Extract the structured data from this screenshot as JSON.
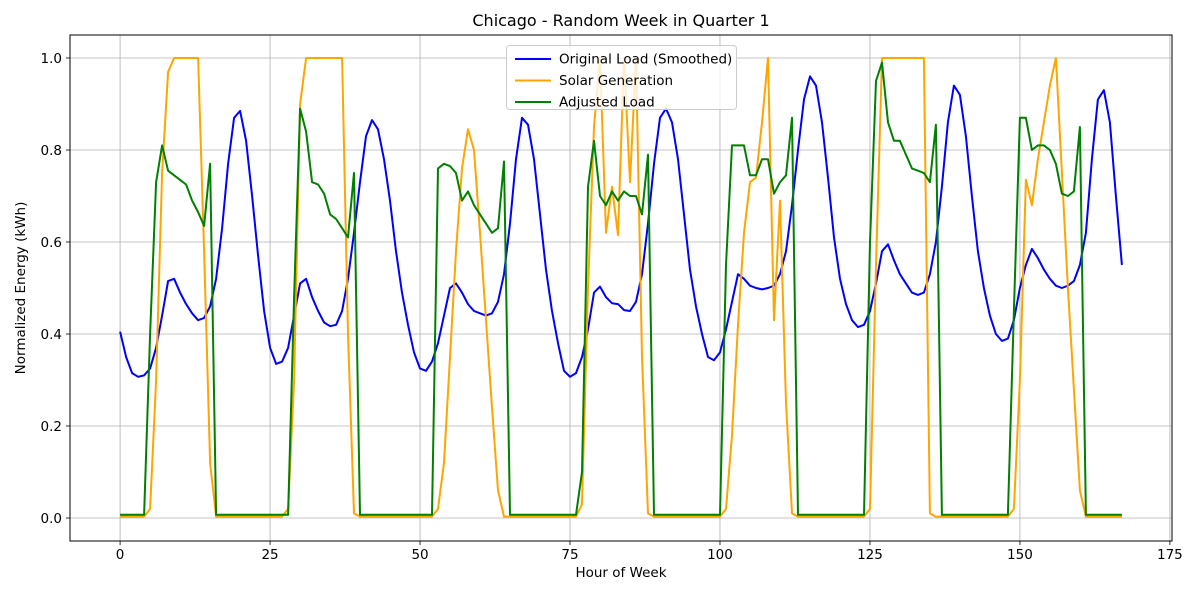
{
  "chart_data": {
    "type": "line",
    "title": "Chicago - Random Week in Quarter 1",
    "xlabel": "Hour of Week",
    "ylabel": "Normalized Energy (kWh)",
    "xlim": [
      -8.35,
      175.35
    ],
    "ylim": [
      -0.05,
      1.05
    ],
    "xticks": [
      0,
      25,
      50,
      75,
      100,
      125,
      150,
      175
    ],
    "yticks": [
      0.0,
      0.2,
      0.4,
      0.6,
      0.8,
      1.0
    ],
    "grid": true,
    "grid_color": "#b0b0b0",
    "background_color": "#ffffff",
    "legend_position": "upper center",
    "x_start": 0,
    "x_step": 1,
    "n_points": 168,
    "series": [
      {
        "name": "Original Load (Smoothed)",
        "color": "#0000ff",
        "values": [
          0.405,
          0.35,
          0.315,
          0.307,
          0.31,
          0.325,
          0.37,
          0.44,
          0.515,
          0.52,
          0.49,
          0.465,
          0.445,
          0.43,
          0.435,
          0.46,
          0.52,
          0.63,
          0.77,
          0.87,
          0.885,
          0.82,
          0.7,
          0.57,
          0.45,
          0.37,
          0.335,
          0.34,
          0.37,
          0.44,
          0.51,
          0.52,
          0.48,
          0.45,
          0.425,
          0.417,
          0.42,
          0.45,
          0.52,
          0.62,
          0.73,
          0.83,
          0.865,
          0.845,
          0.78,
          0.69,
          0.58,
          0.49,
          0.42,
          0.36,
          0.325,
          0.32,
          0.34,
          0.38,
          0.44,
          0.5,
          0.51,
          0.49,
          0.465,
          0.45,
          0.445,
          0.44,
          0.445,
          0.47,
          0.53,
          0.64,
          0.78,
          0.87,
          0.855,
          0.78,
          0.66,
          0.54,
          0.45,
          0.38,
          0.32,
          0.307,
          0.315,
          0.35,
          0.41,
          0.49,
          0.503,
          0.48,
          0.467,
          0.465,
          0.452,
          0.45,
          0.47,
          0.53,
          0.64,
          0.77,
          0.87,
          0.89,
          0.86,
          0.78,
          0.66,
          0.54,
          0.46,
          0.4,
          0.35,
          0.343,
          0.36,
          0.41,
          0.47,
          0.53,
          0.52,
          0.505,
          0.5,
          0.497,
          0.5,
          0.505,
          0.53,
          0.58,
          0.68,
          0.8,
          0.91,
          0.96,
          0.94,
          0.86,
          0.74,
          0.61,
          0.52,
          0.465,
          0.43,
          0.415,
          0.42,
          0.45,
          0.51,
          0.58,
          0.595,
          0.56,
          0.53,
          0.51,
          0.49,
          0.485,
          0.49,
          0.53,
          0.6,
          0.72,
          0.86,
          0.94,
          0.92,
          0.83,
          0.7,
          0.58,
          0.5,
          0.44,
          0.4,
          0.385,
          0.39,
          0.43,
          0.5,
          0.55,
          0.585,
          0.565,
          0.54,
          0.52,
          0.505,
          0.5,
          0.505,
          0.515,
          0.55,
          0.62,
          0.78,
          0.91,
          0.93,
          0.86,
          0.7,
          0.55
        ]
      },
      {
        "name": "Solar Generation",
        "color": "#ffa500",
        "values": [
          0.003,
          0.003,
          0.003,
          0.003,
          0.003,
          0.02,
          0.3,
          0.75,
          0.97,
          1,
          1,
          1,
          1,
          1,
          0.58,
          0.12,
          0.003,
          0.003,
          0.003,
          0.003,
          0.003,
          0.003,
          0.003,
          0.003,
          0.003,
          0.003,
          0.003,
          0.003,
          0.02,
          0.3,
          0.9,
          1,
          1,
          1,
          1,
          1,
          1,
          1,
          0.4,
          0.01,
          0.003,
          0.003,
          0.003,
          0.003,
          0.003,
          0.003,
          0.003,
          0.003,
          0.003,
          0.003,
          0.003,
          0.003,
          0.003,
          0.02,
          0.12,
          0.35,
          0.58,
          0.76,
          0.845,
          0.8,
          0.62,
          0.43,
          0.24,
          0.06,
          0.003,
          0.003,
          0.003,
          0.003,
          0.003,
          0.003,
          0.003,
          0.003,
          0.003,
          0.003,
          0.003,
          0.003,
          0.003,
          0.03,
          0.5,
          0.85,
          1,
          0.62,
          0.72,
          0.615,
          1,
          0.73,
          1,
          0.35,
          0.01,
          0.003,
          0.003,
          0.003,
          0.003,
          0.003,
          0.003,
          0.003,
          0.003,
          0.003,
          0.003,
          0.003,
          0.003,
          0.02,
          0.18,
          0.42,
          0.62,
          0.73,
          0.74,
          0.86,
          1,
          0.43,
          0.69,
          0.25,
          0.01,
          0.003,
          0.003,
          0.003,
          0.003,
          0.003,
          0.003,
          0.003,
          0.003,
          0.003,
          0.003,
          0.003,
          0.003,
          0.02,
          0.55,
          1,
          1,
          1,
          1,
          1,
          1,
          1,
          1,
          0.01,
          0.003,
          0.003,
          0.003,
          0.003,
          0.003,
          0.003,
          0.003,
          0.003,
          0.003,
          0.003,
          0.003,
          0.003,
          0.003,
          0.02,
          0.3,
          0.735,
          0.68,
          0.78,
          0.86,
          0.94,
          1,
          0.75,
          0.5,
          0.28,
          0.06,
          0.003,
          0.003,
          0.003,
          0.003,
          0.003,
          0.003,
          0.003
        ]
      },
      {
        "name": "Adjusted Load",
        "color": "#008000",
        "values": [
          0.007,
          0.007,
          0.007,
          0.007,
          0.007,
          0.4,
          0.73,
          0.81,
          0.755,
          0.745,
          0.735,
          0.725,
          0.69,
          0.665,
          0.635,
          0.77,
          0.007,
          0.007,
          0.007,
          0.007,
          0.007,
          0.007,
          0.007,
          0.007,
          0.007,
          0.007,
          0.007,
          0.007,
          0.007,
          0.48,
          0.89,
          0.84,
          0.73,
          0.725,
          0.705,
          0.66,
          0.65,
          0.63,
          0.61,
          0.75,
          0.007,
          0.007,
          0.007,
          0.007,
          0.007,
          0.007,
          0.007,
          0.007,
          0.007,
          0.007,
          0.007,
          0.007,
          0.007,
          0.76,
          0.77,
          0.765,
          0.75,
          0.69,
          0.71,
          0.68,
          0.66,
          0.64,
          0.62,
          0.63,
          0.775,
          0.007,
          0.007,
          0.007,
          0.007,
          0.007,
          0.007,
          0.007,
          0.007,
          0.007,
          0.007,
          0.007,
          0.007,
          0.1,
          0.72,
          0.82,
          0.7,
          0.68,
          0.71,
          0.69,
          0.71,
          0.7,
          0.7,
          0.66,
          0.79,
          0.007,
          0.007,
          0.007,
          0.007,
          0.007,
          0.007,
          0.007,
          0.007,
          0.007,
          0.007,
          0.007,
          0.007,
          0.55,
          0.81,
          0.81,
          0.81,
          0.745,
          0.745,
          0.78,
          0.78,
          0.705,
          0.73,
          0.745,
          0.87,
          0.007,
          0.007,
          0.007,
          0.007,
          0.007,
          0.007,
          0.007,
          0.007,
          0.007,
          0.007,
          0.007,
          0.007,
          0.6,
          0.95,
          0.99,
          0.86,
          0.82,
          0.82,
          0.79,
          0.76,
          0.755,
          0.75,
          0.73,
          0.855,
          0.007,
          0.007,
          0.007,
          0.007,
          0.007,
          0.007,
          0.007,
          0.007,
          0.007,
          0.007,
          0.007,
          0.007,
          0.45,
          0.87,
          0.87,
          0.8,
          0.81,
          0.81,
          0.8,
          0.77,
          0.705,
          0.7,
          0.71,
          0.85,
          0.007,
          0.007,
          0.007,
          0.007,
          0.007,
          0.007,
          0.007
        ]
      }
    ]
  }
}
